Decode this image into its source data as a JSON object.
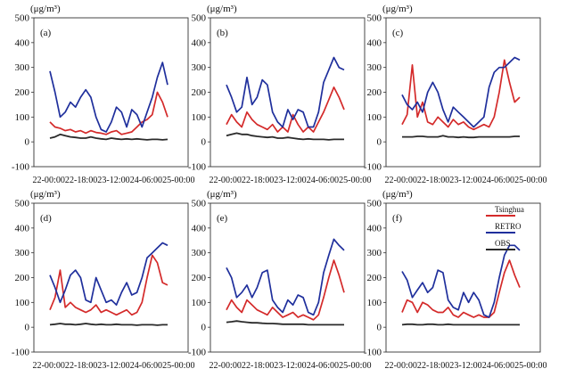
{
  "chart_data": {
    "type": "line",
    "unit_label": "(μg/m³)",
    "x_tick_labels": [
      "22-00:00",
      "22-18:00",
      "23-12:00",
      "24-06:00",
      "25-00:00"
    ],
    "ylim": [
      -100,
      500
    ],
    "y_ticks": [
      -100,
      0,
      100,
      200,
      300,
      400,
      500
    ],
    "legend": [
      {
        "name": "Tsinghua",
        "color": "#d42a2a"
      },
      {
        "name": "RETRO",
        "color": "#1f2f9c"
      },
      {
        "name": "OBS",
        "color": "#2a2a2a"
      }
    ],
    "panels": [
      {
        "label": "(a)",
        "series": [
          {
            "name": "Tsinghua",
            "values": [
              80,
              60,
              55,
              45,
              50,
              40,
              45,
              35,
              45,
              38,
              35,
              30,
              40,
              45,
              30,
              35,
              40,
              60,
              80,
              90,
              110,
              200,
              160,
              100
            ]
          },
          {
            "name": "RETRO",
            "values": [
              285,
              200,
              100,
              120,
              160,
              140,
              180,
              210,
              180,
              100,
              50,
              40,
              80,
              140,
              120,
              60,
              130,
              110,
              60,
              120,
              180,
              260,
              320,
              230
            ]
          },
          {
            "name": "OBS",
            "values": [
              15,
              20,
              30,
              25,
              20,
              18,
              15,
              15,
              20,
              15,
              12,
              10,
              15,
              12,
              10,
              12,
              10,
              12,
              10,
              8,
              10,
              10,
              8,
              10
            ]
          }
        ]
      },
      {
        "label": "(b)",
        "series": [
          {
            "name": "Tsinghua",
            "values": [
              70,
              110,
              80,
              60,
              120,
              90,
              70,
              60,
              50,
              70,
              40,
              60,
              40,
              110,
              70,
              40,
              60,
              40,
              80,
              120,
              170,
              220,
              180,
              130
            ]
          },
          {
            "name": "RETRO",
            "values": [
              230,
              180,
              120,
              140,
              260,
              150,
              180,
              250,
              230,
              120,
              80,
              60,
              130,
              90,
              130,
              120,
              60,
              60,
              120,
              240,
              290,
              340,
              300,
              290
            ]
          },
          {
            "name": "OBS",
            "values": [
              25,
              30,
              35,
              30,
              30,
              25,
              22,
              20,
              18,
              20,
              15,
              15,
              18,
              15,
              12,
              10,
              12,
              10,
              10,
              10,
              8,
              10,
              10,
              10
            ]
          }
        ]
      },
      {
        "label": "(c)",
        "series": [
          {
            "name": "Tsinghua",
            "values": [
              70,
              110,
              310,
              100,
              160,
              80,
              70,
              100,
              80,
              60,
              90,
              70,
              80,
              60,
              50,
              60,
              70,
              60,
              100,
              200,
              330,
              240,
              160,
              180
            ]
          },
          {
            "name": "RETRO",
            "values": [
              190,
              150,
              130,
              160,
              120,
              200,
              240,
              200,
              130,
              80,
              140,
              120,
              100,
              80,
              60,
              80,
              100,
              220,
              280,
              300,
              300,
              320,
              340,
              330
            ]
          },
          {
            "name": "OBS",
            "values": [
              20,
              20,
              20,
              22,
              22,
              20,
              20,
              20,
              25,
              20,
              20,
              18,
              20,
              18,
              18,
              20,
              20,
              20,
              20,
              20,
              20,
              20,
              22,
              22
            ]
          }
        ]
      },
      {
        "label": "(d)",
        "series": [
          {
            "name": "Tsinghua",
            "values": [
              70,
              120,
              230,
              80,
              100,
              80,
              70,
              60,
              70,
              90,
              60,
              70,
              60,
              50,
              60,
              70,
              50,
              60,
              100,
              200,
              290,
              260,
              180,
              170
            ]
          },
          {
            "name": "RETRO",
            "values": [
              210,
              160,
              100,
              150,
              210,
              230,
              200,
              110,
              100,
              200,
              150,
              100,
              110,
              90,
              140,
              180,
              130,
              140,
              200,
              280,
              300,
              320,
              340,
              330
            ]
          },
          {
            "name": "OBS",
            "values": [
              10,
              12,
              15,
              12,
              12,
              10,
              12,
              15,
              12,
              10,
              12,
              10,
              10,
              12,
              10,
              10,
              10,
              8,
              10,
              10,
              10,
              8,
              10,
              10
            ]
          }
        ]
      },
      {
        "label": "(e)",
        "series": [
          {
            "name": "Tsinghua",
            "values": [
              70,
              110,
              80,
              60,
              110,
              90,
              70,
              60,
              50,
              80,
              60,
              40,
              50,
              60,
              40,
              50,
              40,
              30,
              50,
              120,
              200,
              270,
              210,
              140
            ]
          },
          {
            "name": "RETRO",
            "values": [
              240,
              200,
              120,
              140,
              170,
              120,
              160,
              220,
              230,
              110,
              80,
              60,
              110,
              90,
              130,
              120,
              60,
              50,
              100,
              220,
              290,
              355,
              330,
              310
            ]
          },
          {
            "name": "OBS",
            "values": [
              20,
              22,
              25,
              22,
              20,
              18,
              18,
              16,
              15,
              15,
              14,
              12,
              12,
              12,
              12,
              12,
              10,
              10,
              10,
              10,
              10,
              10,
              10,
              10
            ]
          }
        ]
      },
      {
        "label": "(f)",
        "series": [
          {
            "name": "Tsinghua",
            "values": [
              60,
              110,
              100,
              60,
              100,
              90,
              70,
              60,
              60,
              80,
              50,
              40,
              60,
              50,
              40,
              50,
              40,
              40,
              60,
              140,
              220,
              270,
              210,
              160
            ]
          },
          {
            "name": "RETRO",
            "values": [
              225,
              190,
              120,
              150,
              180,
              140,
              160,
              230,
              220,
              110,
              80,
              70,
              140,
              100,
              140,
              110,
              50,
              40,
              100,
              200,
              290,
              330,
              330,
              310
            ]
          },
          {
            "name": "OBS",
            "values": [
              10,
              12,
              12,
              10,
              10,
              12,
              12,
              10,
              10,
              12,
              10,
              10,
              10,
              10,
              10,
              10,
              10,
              10,
              10,
              10,
              10,
              10,
              10,
              10
            ]
          }
        ]
      }
    ]
  }
}
